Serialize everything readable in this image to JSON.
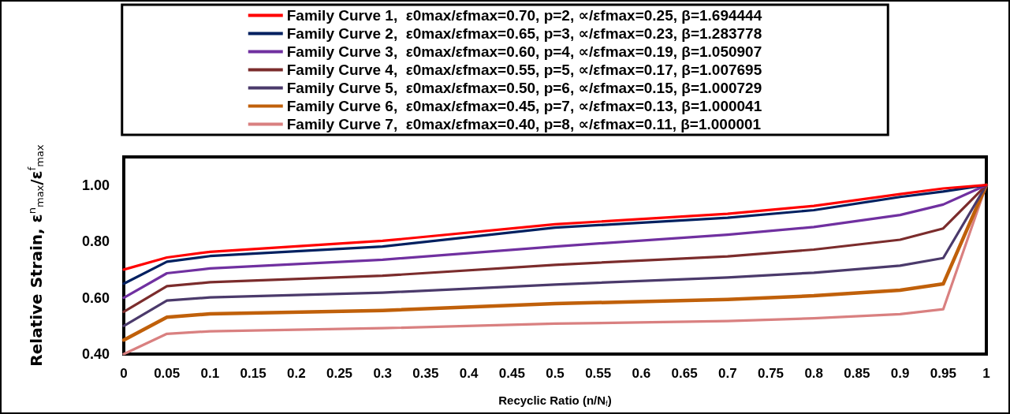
{
  "chart_data": {
    "type": "line",
    "xlabel": "Recyclic Ratio (n/N$_{f}$)",
    "ylabel": "Relative Strain, ε$^{n}$$_{max}$/ε$^{f}$$_{max}$",
    "x": [
      0,
      0.05,
      0.1,
      0.3,
      0.5,
      0.7,
      0.8,
      0.9,
      0.95,
      1
    ],
    "xlim": [
      0,
      1
    ],
    "xticks": [
      0,
      0.05,
      0.1,
      0.15,
      0.2,
      0.25,
      0.3,
      0.35,
      0.4,
      0.45,
      0.5,
      0.55,
      0.6,
      0.65,
      0.7,
      0.75,
      0.8,
      0.85,
      0.9,
      0.95,
      1
    ],
    "ylim": [
      0.4,
      1.1
    ],
    "yticks": [
      {
        "value": 0.4,
        "label": "0.40"
      },
      {
        "value": 0.6,
        "label": "0.60"
      },
      {
        "value": 0.8,
        "label": "0.80"
      },
      {
        "value": 1.0,
        "label": "1.00"
      }
    ],
    "series": [
      {
        "name": "Family Curve 1,  ε0max/εfmax=0.70, p=2, ∝/εfmax=0.25, β=1.694444",
        "color": "#ff0000",
        "values": [
          0.7,
          0.743,
          0.763,
          0.802,
          0.861,
          0.898,
          0.926,
          0.968,
          0.988,
          1.0
        ]
      },
      {
        "name": "Family Curve 2,  ε0max/εfmax=0.65, p=3, ∝/εfmax=0.23, β=1.283778",
        "color": "#002060",
        "values": [
          0.65,
          0.728,
          0.748,
          0.782,
          0.849,
          0.884,
          0.911,
          0.958,
          0.977,
          1.0
        ]
      },
      {
        "name": "Family Curve 3,  ε0max/εfmax=0.60, p=4, ∝/εfmax=0.19, β=1.050907",
        "color": "#7030a0",
        "values": [
          0.6,
          0.687,
          0.704,
          0.735,
          0.782,
          0.824,
          0.851,
          0.894,
          0.931,
          1.0
        ]
      },
      {
        "name": "Family Curve 4,  ε0max/εfmax=0.55, p=5, ∝/εfmax=0.17, β=1.007695",
        "color": "#7b2c2c",
        "values": [
          0.55,
          0.641,
          0.655,
          0.678,
          0.717,
          0.747,
          0.771,
          0.806,
          0.846,
          1.0
        ]
      },
      {
        "name": "Family Curve 5,  ε0max/εfmax=0.50, p=6, ∝/εfmax=0.15, β=1.000729",
        "color": "#4b3a6b",
        "values": [
          0.5,
          0.59,
          0.601,
          0.618,
          0.647,
          0.672,
          0.689,
          0.714,
          0.741,
          1.0
        ]
      },
      {
        "name": "Family Curve 6,  ε0max/εfmax=0.45, p=7, ∝/εfmax=0.13, β=1.000041",
        "color": "#c0600a",
        "values": [
          0.45,
          0.531,
          0.543,
          0.555,
          0.579,
          0.594,
          0.607,
          0.627,
          0.649,
          1.0
        ]
      },
      {
        "name": "Family Curve 7,  ε0max/εfmax=0.40, p=8, ∝/εfmax=0.11, β=1.000001",
        "color": "#d98080",
        "values": [
          0.4,
          0.472,
          0.481,
          0.492,
          0.508,
          0.517,
          0.527,
          0.542,
          0.559,
          1.0
        ]
      }
    ],
    "legend": "top",
    "grid": false,
    "marker": "none",
    "line_style": "solid"
  }
}
